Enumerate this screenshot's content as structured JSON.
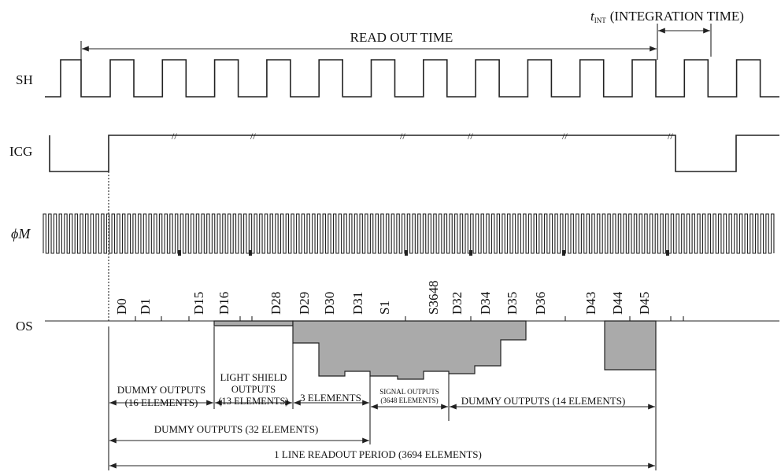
{
  "header": {
    "integration_symbol": "t",
    "integration_subscript": "INT",
    "integration_label": "(INTEGRATION TIME)",
    "readout_label": "READ OUT TIME"
  },
  "signals": [
    "SH",
    "ICG",
    "ϕM",
    "OS"
  ],
  "os_labels": [
    "D0",
    "D1",
    "D15",
    "D16",
    "D28",
    "D29",
    "D30",
    "D31",
    "S1",
    "S3648",
    "D32",
    "D34",
    "D35",
    "D36",
    "D43",
    "D44",
    "D45"
  ],
  "spans": [
    {
      "lines": [
        "DUMMY OUTPUTS",
        "(16 ELEMENTS)"
      ]
    },
    {
      "lines": [
        "LIGHT SHIELD",
        "OUTPUTS",
        "(13 ELEMENTS)"
      ]
    },
    {
      "lines": [
        "3 ELEMENTS"
      ]
    },
    {
      "lines": [
        "SIGNAL OUTPUTS",
        "(3648 ELEMENTS)"
      ]
    },
    {
      "lines": [
        "DUMMY OUTPUTS (14 ELEMENTS)"
      ]
    },
    {
      "lines": [
        "DUMMY OUTPUTS (32 ELEMENTS)"
      ]
    },
    {
      "lines": [
        "1 LINE READOUT PERIOD (3694 ELEMENTS)"
      ]
    }
  ]
}
